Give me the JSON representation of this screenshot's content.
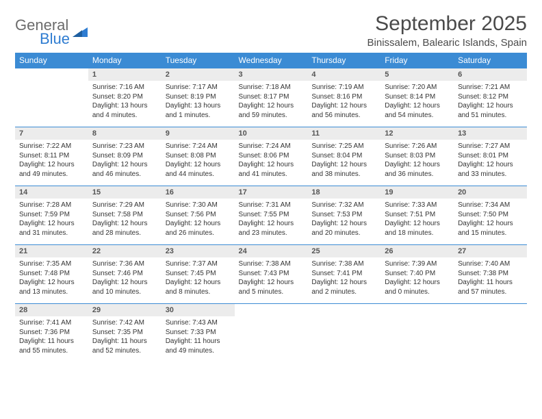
{
  "brand": {
    "line1": "General",
    "line2": "Blue"
  },
  "title": "September 2025",
  "location": "Binissalem, Balearic Islands, Spain",
  "colors": {
    "header_bg": "#3b8bd4",
    "header_text": "#ffffff",
    "daynum_bg": "#ececec",
    "border": "#3b8bd4",
    "brand_gray": "#6b6b6b",
    "brand_blue": "#2e7cd1"
  },
  "weekdays": [
    "Sunday",
    "Monday",
    "Tuesday",
    "Wednesday",
    "Thursday",
    "Friday",
    "Saturday"
  ],
  "weeks": [
    [
      {
        "n": "",
        "sr": "",
        "ss": "",
        "d1": "",
        "d2": ""
      },
      {
        "n": "1",
        "sr": "Sunrise: 7:16 AM",
        "ss": "Sunset: 8:20 PM",
        "d1": "Daylight: 13 hours",
        "d2": "and 4 minutes."
      },
      {
        "n": "2",
        "sr": "Sunrise: 7:17 AM",
        "ss": "Sunset: 8:19 PM",
        "d1": "Daylight: 13 hours",
        "d2": "and 1 minutes."
      },
      {
        "n": "3",
        "sr": "Sunrise: 7:18 AM",
        "ss": "Sunset: 8:17 PM",
        "d1": "Daylight: 12 hours",
        "d2": "and 59 minutes."
      },
      {
        "n": "4",
        "sr": "Sunrise: 7:19 AM",
        "ss": "Sunset: 8:16 PM",
        "d1": "Daylight: 12 hours",
        "d2": "and 56 minutes."
      },
      {
        "n": "5",
        "sr": "Sunrise: 7:20 AM",
        "ss": "Sunset: 8:14 PM",
        "d1": "Daylight: 12 hours",
        "d2": "and 54 minutes."
      },
      {
        "n": "6",
        "sr": "Sunrise: 7:21 AM",
        "ss": "Sunset: 8:12 PM",
        "d1": "Daylight: 12 hours",
        "d2": "and 51 minutes."
      }
    ],
    [
      {
        "n": "7",
        "sr": "Sunrise: 7:22 AM",
        "ss": "Sunset: 8:11 PM",
        "d1": "Daylight: 12 hours",
        "d2": "and 49 minutes."
      },
      {
        "n": "8",
        "sr": "Sunrise: 7:23 AM",
        "ss": "Sunset: 8:09 PM",
        "d1": "Daylight: 12 hours",
        "d2": "and 46 minutes."
      },
      {
        "n": "9",
        "sr": "Sunrise: 7:24 AM",
        "ss": "Sunset: 8:08 PM",
        "d1": "Daylight: 12 hours",
        "d2": "and 44 minutes."
      },
      {
        "n": "10",
        "sr": "Sunrise: 7:24 AM",
        "ss": "Sunset: 8:06 PM",
        "d1": "Daylight: 12 hours",
        "d2": "and 41 minutes."
      },
      {
        "n": "11",
        "sr": "Sunrise: 7:25 AM",
        "ss": "Sunset: 8:04 PM",
        "d1": "Daylight: 12 hours",
        "d2": "and 38 minutes."
      },
      {
        "n": "12",
        "sr": "Sunrise: 7:26 AM",
        "ss": "Sunset: 8:03 PM",
        "d1": "Daylight: 12 hours",
        "d2": "and 36 minutes."
      },
      {
        "n": "13",
        "sr": "Sunrise: 7:27 AM",
        "ss": "Sunset: 8:01 PM",
        "d1": "Daylight: 12 hours",
        "d2": "and 33 minutes."
      }
    ],
    [
      {
        "n": "14",
        "sr": "Sunrise: 7:28 AM",
        "ss": "Sunset: 7:59 PM",
        "d1": "Daylight: 12 hours",
        "d2": "and 31 minutes."
      },
      {
        "n": "15",
        "sr": "Sunrise: 7:29 AM",
        "ss": "Sunset: 7:58 PM",
        "d1": "Daylight: 12 hours",
        "d2": "and 28 minutes."
      },
      {
        "n": "16",
        "sr": "Sunrise: 7:30 AM",
        "ss": "Sunset: 7:56 PM",
        "d1": "Daylight: 12 hours",
        "d2": "and 26 minutes."
      },
      {
        "n": "17",
        "sr": "Sunrise: 7:31 AM",
        "ss": "Sunset: 7:55 PM",
        "d1": "Daylight: 12 hours",
        "d2": "and 23 minutes."
      },
      {
        "n": "18",
        "sr": "Sunrise: 7:32 AM",
        "ss": "Sunset: 7:53 PM",
        "d1": "Daylight: 12 hours",
        "d2": "and 20 minutes."
      },
      {
        "n": "19",
        "sr": "Sunrise: 7:33 AM",
        "ss": "Sunset: 7:51 PM",
        "d1": "Daylight: 12 hours",
        "d2": "and 18 minutes."
      },
      {
        "n": "20",
        "sr": "Sunrise: 7:34 AM",
        "ss": "Sunset: 7:50 PM",
        "d1": "Daylight: 12 hours",
        "d2": "and 15 minutes."
      }
    ],
    [
      {
        "n": "21",
        "sr": "Sunrise: 7:35 AM",
        "ss": "Sunset: 7:48 PM",
        "d1": "Daylight: 12 hours",
        "d2": "and 13 minutes."
      },
      {
        "n": "22",
        "sr": "Sunrise: 7:36 AM",
        "ss": "Sunset: 7:46 PM",
        "d1": "Daylight: 12 hours",
        "d2": "and 10 minutes."
      },
      {
        "n": "23",
        "sr": "Sunrise: 7:37 AM",
        "ss": "Sunset: 7:45 PM",
        "d1": "Daylight: 12 hours",
        "d2": "and 8 minutes."
      },
      {
        "n": "24",
        "sr": "Sunrise: 7:38 AM",
        "ss": "Sunset: 7:43 PM",
        "d1": "Daylight: 12 hours",
        "d2": "and 5 minutes."
      },
      {
        "n": "25",
        "sr": "Sunrise: 7:38 AM",
        "ss": "Sunset: 7:41 PM",
        "d1": "Daylight: 12 hours",
        "d2": "and 2 minutes."
      },
      {
        "n": "26",
        "sr": "Sunrise: 7:39 AM",
        "ss": "Sunset: 7:40 PM",
        "d1": "Daylight: 12 hours",
        "d2": "and 0 minutes."
      },
      {
        "n": "27",
        "sr": "Sunrise: 7:40 AM",
        "ss": "Sunset: 7:38 PM",
        "d1": "Daylight: 11 hours",
        "d2": "and 57 minutes."
      }
    ],
    [
      {
        "n": "28",
        "sr": "Sunrise: 7:41 AM",
        "ss": "Sunset: 7:36 PM",
        "d1": "Daylight: 11 hours",
        "d2": "and 55 minutes."
      },
      {
        "n": "29",
        "sr": "Sunrise: 7:42 AM",
        "ss": "Sunset: 7:35 PM",
        "d1": "Daylight: 11 hours",
        "d2": "and 52 minutes."
      },
      {
        "n": "30",
        "sr": "Sunrise: 7:43 AM",
        "ss": "Sunset: 7:33 PM",
        "d1": "Daylight: 11 hours",
        "d2": "and 49 minutes."
      },
      {
        "n": "",
        "sr": "",
        "ss": "",
        "d1": "",
        "d2": ""
      },
      {
        "n": "",
        "sr": "",
        "ss": "",
        "d1": "",
        "d2": ""
      },
      {
        "n": "",
        "sr": "",
        "ss": "",
        "d1": "",
        "d2": ""
      },
      {
        "n": "",
        "sr": "",
        "ss": "",
        "d1": "",
        "d2": ""
      }
    ]
  ]
}
